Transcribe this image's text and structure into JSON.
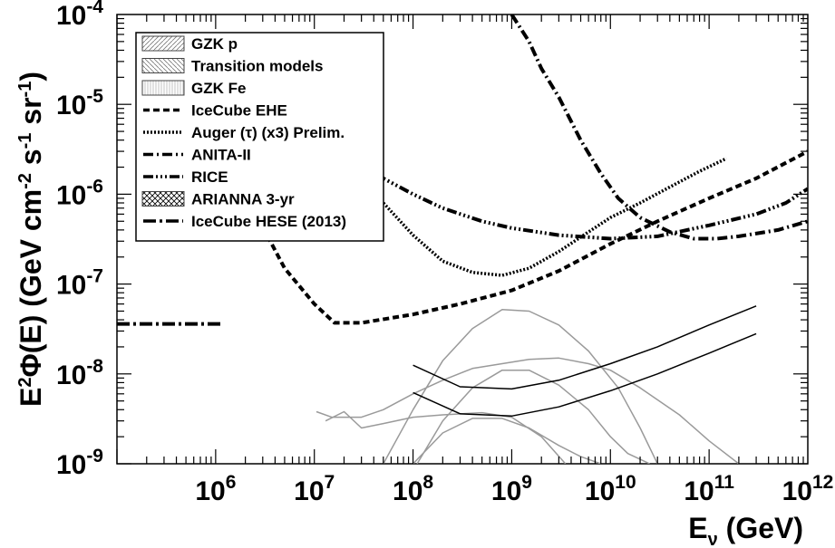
{
  "chart_data": {
    "type": "line",
    "xlabel": "E_ν (GeV)",
    "xlabel_main": "E",
    "xlabel_sub": "ν",
    "xlabel_unit": " (GeV)",
    "ylabel": "E²Φ(E) (GeV cm⁻² s⁻¹ sr⁻¹)",
    "xscale": "log",
    "yscale": "log",
    "xlim": [
      100000.0,
      1000000000000.0
    ],
    "ylim": [
      1e-09,
      0.0001
    ],
    "x_ticks": [
      {
        "value": 1000000.0,
        "base": "10",
        "exp": "6"
      },
      {
        "value": 10000000.0,
        "base": "10",
        "exp": "7"
      },
      {
        "value": 100000000.0,
        "base": "10",
        "exp": "8"
      },
      {
        "value": 1000000000.0,
        "base": "10",
        "exp": "9"
      },
      {
        "value": 10000000000.0,
        "base": "10",
        "exp": "10"
      },
      {
        "value": 100000000000.0,
        "base": "10",
        "exp": "11"
      },
      {
        "value": 1000000000000.0,
        "base": "10",
        "exp": "12"
      }
    ],
    "y_ticks": [
      {
        "value": 1e-09,
        "base": "10",
        "exp": "-9"
      },
      {
        "value": 1e-08,
        "base": "10",
        "exp": "-8"
      },
      {
        "value": 1e-07,
        "base": "10",
        "exp": "-7"
      },
      {
        "value": 1e-06,
        "base": "10",
        "exp": "-6"
      },
      {
        "value": 1e-05,
        "base": "10",
        "exp": "-5"
      },
      {
        "value": 0.0001,
        "base": "10",
        "exp": "-4"
      }
    ],
    "legend_position": "top-left",
    "legend": [
      {
        "label": "GZK p",
        "symbol": "box",
        "pattern": "hatch-fwd"
      },
      {
        "label": "Transition models",
        "symbol": "box",
        "pattern": "hatch-back"
      },
      {
        "label": "GZK Fe",
        "symbol": "box",
        "pattern": "vlines"
      },
      {
        "label": "IceCube EHE",
        "symbol": "line",
        "dash": "7,4"
      },
      {
        "label": "Auger (τ) (x3) Prelim.",
        "symbol": "line",
        "dash": "2,2"
      },
      {
        "label": "ANITA-II",
        "symbol": "line",
        "dash": "11,4,2,4"
      },
      {
        "label": "RICE",
        "symbol": "line",
        "dash": "11,3,2,3,2,3,2,3"
      },
      {
        "label": "ARIANNA 3-yr",
        "symbol": "box",
        "pattern": "cross"
      },
      {
        "label": "IceCube HESE (2013)",
        "symbol": "line",
        "dash": "14,4,3,4"
      }
    ],
    "series": [
      {
        "name": "IceCube EHE",
        "color": "#000000",
        "dash": "7,4",
        "width": 4,
        "x": [
          1100000.0,
          2000000.0,
          5000000.0,
          10000000.0,
          16000000.0,
          30000000.0,
          100000000.0,
          300000000.0,
          1000000000.0,
          3000000000.0,
          10000000000.0,
          30000000000.0,
          100000000000.0,
          300000000000.0,
          1000000000000.0
        ],
        "y": [
          2.4e-06,
          1e-06,
          1.5e-07,
          6e-08,
          3.7e-08,
          3.7e-08,
          4.6e-08,
          6e-08,
          8.5e-08,
          1.4e-07,
          2.8e-07,
          5e-07,
          9e-07,
          1.5e-06,
          3e-06
        ]
      },
      {
        "name": "IceCube HESE (2013)",
        "color": "#000000",
        "dash": "14,4,3,4",
        "width": 4,
        "x": [
          100000.0,
          1200000.0
        ],
        "y": [
          3.6e-08,
          3.6e-08
        ]
      },
      {
        "name": "Auger (τ) (x3) Prelim.",
        "color": "#000000",
        "dash": "2,2",
        "width": 3.5,
        "x": [
          22000000.0,
          50000000.0,
          100000000.0,
          200000000.0,
          400000000.0,
          800000000.0,
          1500000000.0,
          3000000000.0,
          6000000000.0,
          10000000000.0,
          20000000000.0,
          40000000000.0,
          80000000000.0,
          150000000000.0
        ],
        "y": [
          2.6e-06,
          8e-07,
          3.5e-07,
          1.8e-07,
          1.35e-07,
          1.25e-07,
          1.5e-07,
          2.3e-07,
          3.8e-07,
          5.5e-07,
          8e-07,
          1.2e-06,
          1.8e-06,
          2.5e-06
        ]
      },
      {
        "name": "ANITA-II",
        "color": "#000000",
        "dash": "11,4,2,4",
        "width": 4,
        "x": [
          1000000000.0,
          1500000000.0,
          2000000000.0,
          3000000000.0,
          5000000000.0,
          8000000000.0,
          12000000000.0,
          20000000000.0,
          40000000000.0,
          70000000000.0,
          120000000000.0,
          200000000000.0,
          500000000000.0,
          1000000000000.0
        ],
        "y": [
          0.0001,
          5e-05,
          2.5e-05,
          1.2e-05,
          4e-06,
          1.7e-06,
          9e-07,
          5.5e-07,
          3.8e-07,
          3.2e-07,
          3.2e-07,
          3.4e-07,
          4e-07,
          5e-07
        ]
      },
      {
        "name": "RICE",
        "color": "#000000",
        "dash": "11,3,2,3,2,3,2,3",
        "width": 4,
        "x": [
          25000000.0,
          50000000.0,
          100000000.0,
          200000000.0,
          500000000.0,
          1000000000.0,
          3000000000.0,
          10000000000.0,
          30000000000.0,
          100000000000.0,
          300000000000.0,
          600000000000.0,
          1000000000000.0
        ],
        "y": [
          2.3e-06,
          1.5e-06,
          1e-06,
          7e-07,
          5e-07,
          4.2e-07,
          3.5e-07,
          3.2e-07,
          3.4e-07,
          4.5e-07,
          6e-07,
          8e-07,
          1.15e-06
        ]
      },
      {
        "name": "GZK p (upper)",
        "color": "#9a9a9a",
        "dash": "",
        "width": 1.5,
        "x": [
          50000000.0,
          100000000.0,
          200000000.0,
          400000000.0,
          800000000.0,
          1500000000.0,
          3000000000.0,
          6000000000.0,
          12000000000.0,
          20000000000.0,
          30000000000.0
        ],
        "y": [
          1e-09,
          4e-09,
          1.4e-08,
          3.2e-08,
          5.2e-08,
          5e-08,
          3.5e-08,
          1.8e-08,
          7e-09,
          2.5e-09,
          1e-09
        ]
      },
      {
        "name": "GZK p (lower)",
        "color": "#9a9a9a",
        "dash": "",
        "width": 1.5,
        "x": [
          110000000.0,
          200000000.0,
          400000000.0,
          800000000.0,
          1500000000.0,
          3000000000.0,
          6000000000.0,
          10000000000.0,
          15000000000.0,
          25000000000.0
        ],
        "y": [
          1e-09,
          3e-09,
          7e-09,
          1.1e-08,
          1.1e-08,
          7.5e-09,
          4e-09,
          2e-09,
          1.3e-09,
          1e-09
        ]
      },
      {
        "name": "Transition models (upper)",
        "color": "#9a9a9a",
        "dash": "",
        "width": 1.5,
        "x": [
          10500000.0,
          15000000.0,
          30000000.0,
          50000000.0,
          100000000.0,
          200000000.0,
          400000000.0,
          800000000.0,
          1500000000.0,
          3000000000.0,
          6000000000.0,
          10000000000.0,
          20000000000.0,
          50000000000.0,
          100000000000.0,
          200000000000.0
        ],
        "y": [
          3.8e-09,
          3.3e-09,
          3.3e-09,
          4e-09,
          6e-09,
          8.5e-09,
          1.15e-08,
          1.3e-08,
          1.45e-08,
          1.5e-08,
          1.3e-08,
          1.1e-08,
          7e-09,
          3.5e-09,
          1.8e-09,
          1e-09
        ]
      },
      {
        "name": "Transition models (lower)",
        "color": "#9a9a9a",
        "dash": "",
        "width": 1.5,
        "x": [
          13000000.0,
          20000000.0,
          30000000.0,
          50000000.0,
          100000000.0,
          200000000.0,
          500000000.0,
          1000000000.0,
          2000000000.0,
          3500000000.0
        ],
        "y": [
          3e-09,
          3.8e-09,
          2.5e-09,
          2.8e-09,
          3.3e-09,
          3.5e-09,
          3.7e-09,
          3.3e-09,
          2e-09,
          1e-09
        ]
      },
      {
        "name": "GZK Fe",
        "color": "#9a9a9a",
        "dash": "",
        "width": 1.5,
        "x": [
          100000000.0,
          200000000.0,
          400000000.0,
          800000000.0,
          1500000000.0,
          3000000000.0,
          5000000000.0,
          8000000000.0
        ],
        "y": [
          1e-09,
          2.2e-09,
          3.2e-09,
          3.2e-09,
          2.5e-09,
          1.6e-09,
          1.2e-09,
          1e-09
        ]
      },
      {
        "name": "ARIANNA 3-yr (upper)",
        "color": "#000000",
        "dash": "",
        "width": 1.5,
        "x": [
          100000000.0,
          300000000.0,
          1000000000.0,
          3000000000.0,
          10000000000.0,
          30000000000.0,
          100000000000.0,
          300000000000.0
        ],
        "y": [
          1.25e-08,
          7.2e-09,
          6.8e-09,
          8.5e-09,
          1.3e-08,
          2e-08,
          3.5e-08,
          5.7e-08
        ]
      },
      {
        "name": "ARIANNA 3-yr (lower)",
        "color": "#000000",
        "dash": "",
        "width": 1.5,
        "x": [
          100000000.0,
          300000000.0,
          1000000000.0,
          3000000000.0,
          10000000000.0,
          30000000000.0,
          100000000000.0,
          300000000000.0
        ],
        "y": [
          6.2e-09,
          3.6e-09,
          3.4e-09,
          4.3e-09,
          6.5e-09,
          1e-08,
          1.7e-08,
          2.8e-08
        ]
      }
    ]
  }
}
